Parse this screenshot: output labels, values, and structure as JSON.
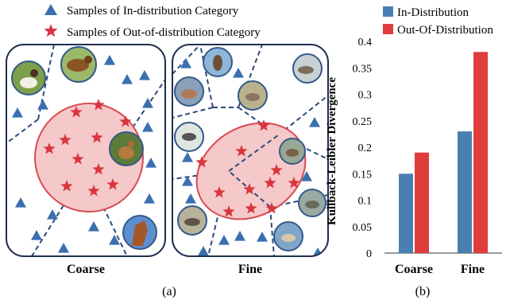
{
  "legend_a": {
    "in_label": "Samples of In-distribution Category",
    "out_label": "Samples of Out-of-distribution Category"
  },
  "panel_a": {
    "coarse_label": "Coarse",
    "fine_label": "Fine",
    "caption": "(a)"
  },
  "panel_b": {
    "caption": "(b)"
  },
  "colors": {
    "in_dist": "#4a7fb4",
    "out_dist": "#e03c3c",
    "triangle": "#3b6fb0",
    "star": "#d9363e",
    "ellipse_fill": "#f5c9c9",
    "ellipse_stroke": "#d94a50",
    "boundary": "#2d4a7a"
  },
  "chart_data": {
    "type": "bar",
    "categories": [
      "Coarse",
      "Fine"
    ],
    "series": [
      {
        "name": "In-Distribution",
        "values": [
          0.15,
          0.23
        ]
      },
      {
        "name": "Out-Of-Distribution",
        "values": [
          0.19,
          0.38
        ]
      }
    ],
    "ylabel": "Kullback-Leibler Divergence",
    "ylim": [
      0,
      0.4
    ],
    "yticks": [
      "0",
      "0.05",
      "0.1",
      "0.15",
      "0.2",
      "0.25",
      "0.3",
      "0.35",
      "0.4"
    ],
    "legend": "top",
    "grid": false
  }
}
